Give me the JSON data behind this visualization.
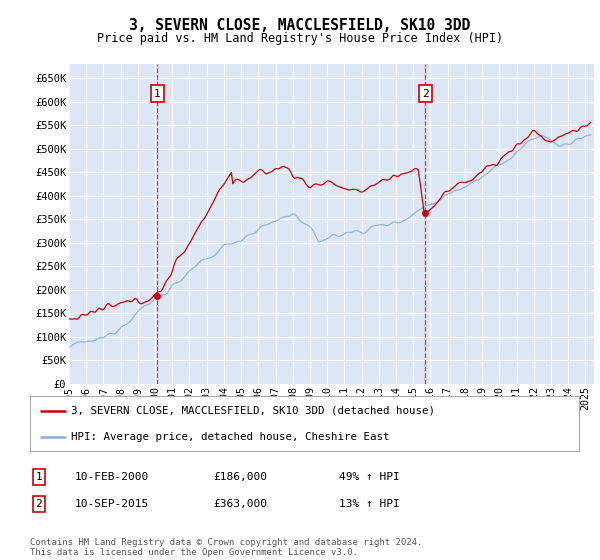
{
  "title": "3, SEVERN CLOSE, MACCLESFIELD, SK10 3DD",
  "subtitle": "Price paid vs. HM Land Registry's House Price Index (HPI)",
  "plot_bg_color": "#dce6f5",
  "grid_color": "#ffffff",
  "ylim": [
    0,
    680000
  ],
  "yticks": [
    0,
    50000,
    100000,
    150000,
    200000,
    250000,
    300000,
    350000,
    400000,
    450000,
    500000,
    550000,
    600000,
    650000
  ],
  "ytick_labels": [
    "£0",
    "£50K",
    "£100K",
    "£150K",
    "£200K",
    "£250K",
    "£300K",
    "£350K",
    "£400K",
    "£450K",
    "£500K",
    "£550K",
    "£600K",
    "£650K"
  ],
  "xlim_start": 1995.0,
  "xlim_end": 2025.5,
  "sale1_year": 2000.12,
  "sale1_price": 186000,
  "sale2_year": 2015.7,
  "sale2_price": 363000,
  "sale1_label": "10-FEB-2000",
  "sale1_amount": "£186,000",
  "sale1_hpi": "49% ↑ HPI",
  "sale2_label": "10-SEP-2015",
  "sale2_amount": "£363,000",
  "sale2_hpi": "13% ↑ HPI",
  "legend1": "3, SEVERN CLOSE, MACCLESFIELD, SK10 3DD (detached house)",
  "legend2": "HPI: Average price, detached house, Cheshire East",
  "footnote": "Contains HM Land Registry data © Crown copyright and database right 2024.\nThis data is licensed under the Open Government Licence v3.0.",
  "red_color": "#cc0000",
  "blue_color": "#88aadd"
}
